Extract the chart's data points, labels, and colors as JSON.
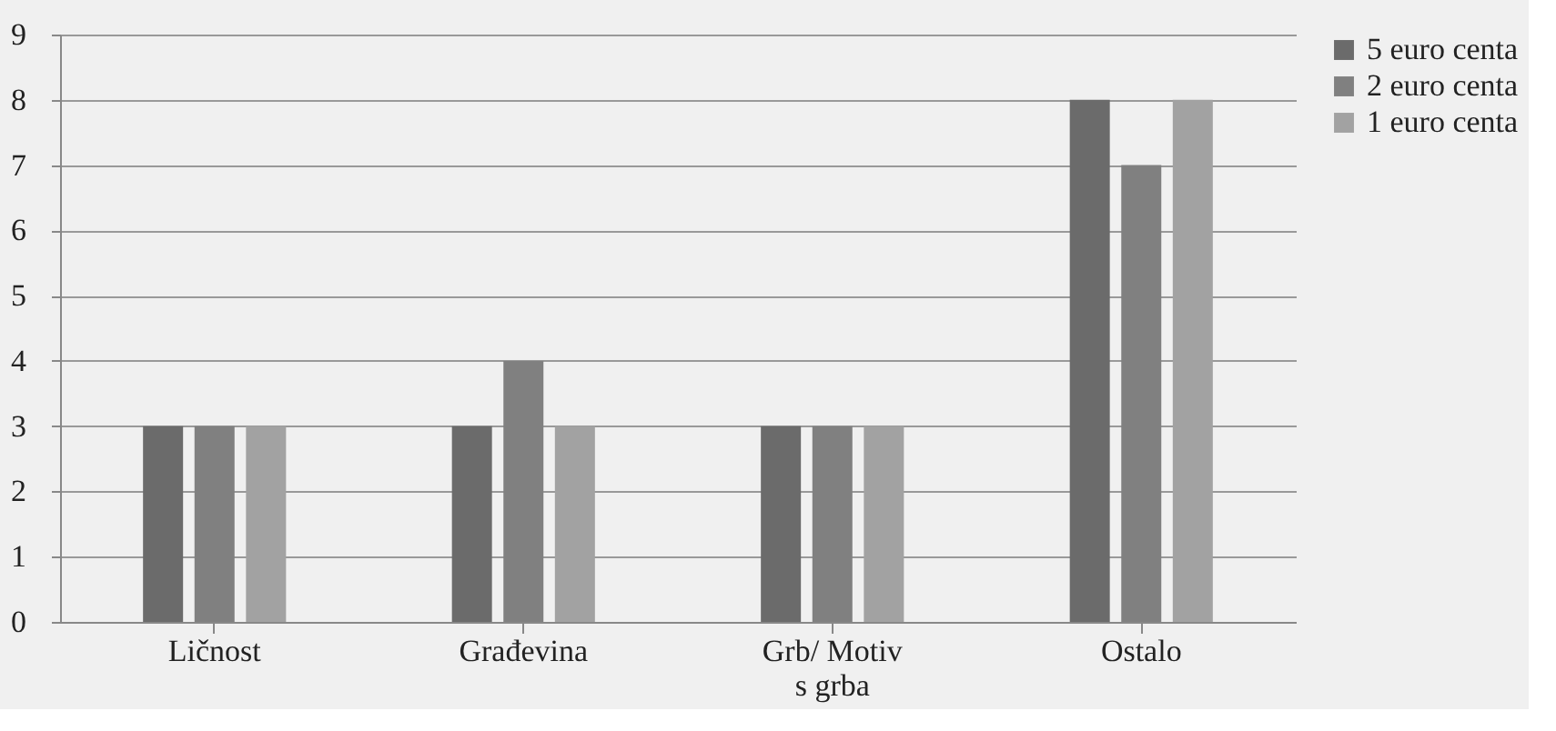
{
  "chart_data": {
    "type": "bar",
    "categories": [
      "Ličnost",
      "Građevina",
      "Grb/ Motiv\ns grba",
      "Ostalo"
    ],
    "series": [
      {
        "name": "5 euro centa",
        "color": "#6b6b6b",
        "values": [
          3,
          3,
          3,
          8
        ]
      },
      {
        "name": "2 euro centa",
        "color": "#808080",
        "values": [
          3,
          4,
          3,
          7
        ]
      },
      {
        "name": "1 euro centa",
        "color": "#a2a2a2",
        "values": [
          3,
          3,
          3,
          8
        ]
      }
    ],
    "ylim": [
      0,
      9
    ],
    "yticks": [
      0,
      1,
      2,
      3,
      4,
      5,
      6,
      7,
      8,
      9
    ],
    "grid": "y",
    "legend": "right"
  }
}
